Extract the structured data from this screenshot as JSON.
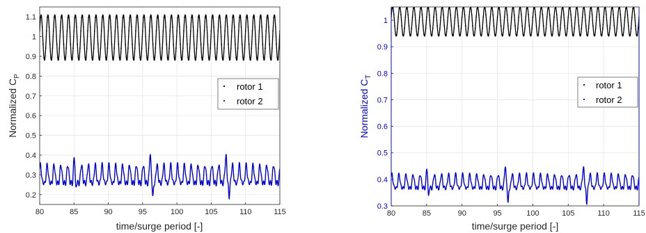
{
  "chart_data": [
    {
      "type": "line",
      "ylabel": "Normalized C",
      "ylabel_sub": "P",
      "xlabel": "time/surge period [-]",
      "xlim": [
        80,
        115
      ],
      "ylim": [
        0.15,
        1.15
      ],
      "xticks": [
        "80",
        "85",
        "90",
        "95",
        "100",
        "105",
        "110",
        "115"
      ],
      "yticks": [
        "0.2",
        "0.3",
        "0.4",
        "0.5",
        "0.6",
        "0.7",
        "0.8",
        "0.9",
        "1",
        "1.1"
      ],
      "grid": true,
      "legend": {
        "location": "right",
        "entries": [
          "rotor 1",
          "rotor 2"
        ]
      },
      "series": [
        {
          "name": "rotor 1",
          "color": "#000000",
          "style": "dots",
          "mean": 0.995,
          "amplitude": 0.115,
          "periods_per_unit": 1.0
        },
        {
          "name": "rotor 2",
          "color": "#0000dd",
          "style": "line",
          "mean": 0.29,
          "amplitude": 0.045,
          "min": 0.17,
          "max": 0.39,
          "periods_per_unit": 1.0
        }
      ]
    },
    {
      "type": "line",
      "ylabel": "Normalized C",
      "ylabel_sub": "T",
      "ylabel_color": "#0000dd",
      "xlabel": "time/surge period [-]",
      "xlim": [
        80,
        115
      ],
      "ylim": [
        0.3,
        1.05
      ],
      "xticks": [
        "80",
        "85",
        "90",
        "95",
        "100",
        "105",
        "110",
        "115"
      ],
      "yticks": [
        "0.3",
        "0.4",
        "0.5",
        "0.6",
        "0.7",
        "0.8",
        "0.9",
        "1"
      ],
      "grid": true,
      "legend": {
        "location": "right",
        "entries": [
          "rotor 1",
          "rotor 2"
        ]
      },
      "series": [
        {
          "name": "rotor 1",
          "color": "#000000",
          "style": "dots",
          "mean": 0.995,
          "amplitude": 0.055,
          "periods_per_unit": 1.0
        },
        {
          "name": "rotor 2",
          "color": "#0000dd",
          "style": "line",
          "mean": 0.385,
          "amplitude": 0.025,
          "min": 0.3,
          "max": 0.44,
          "periods_per_unit": 1.0
        }
      ]
    }
  ]
}
